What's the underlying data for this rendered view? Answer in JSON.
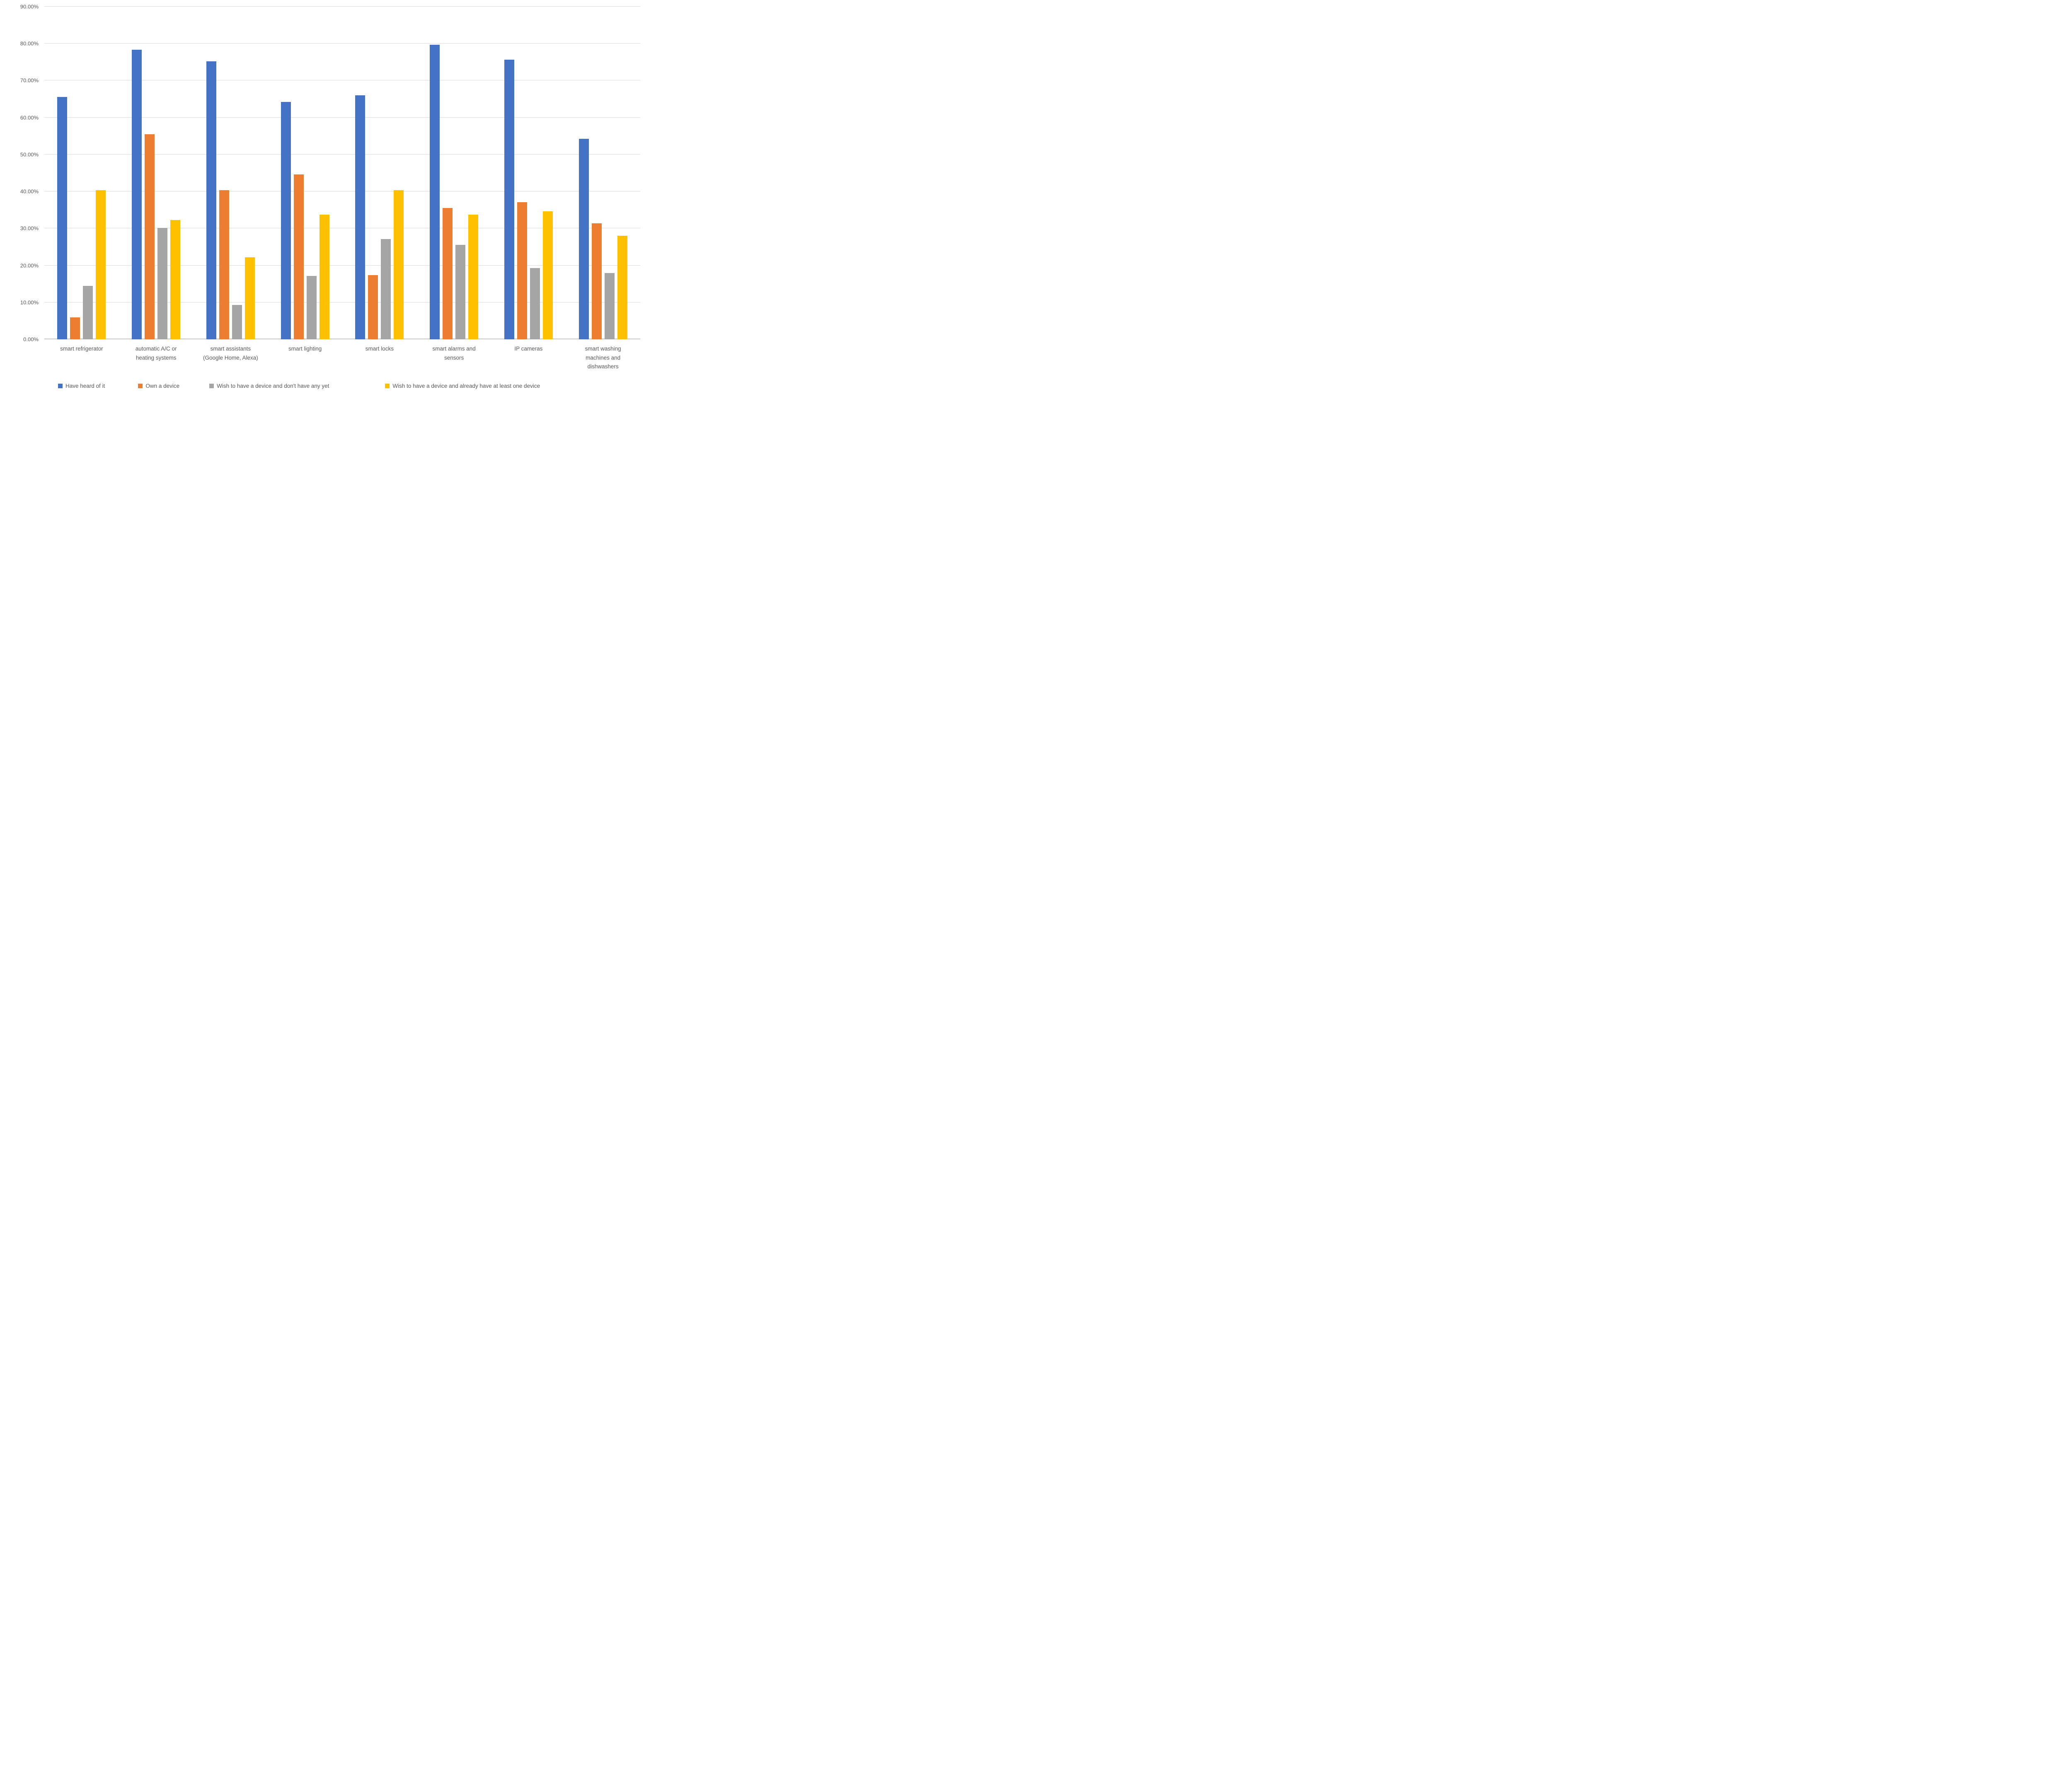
{
  "chart_data": {
    "type": "bar",
    "title": "",
    "xlabel": "",
    "ylabel": "",
    "categories": [
      "smart refrigerator",
      "automatic A/C or heating systems",
      "smart assistants (Google Home, Alexa)",
      "smart lighting",
      "smart locks",
      "smart alarms and sensors",
      "IP cameras",
      "smart washing machines and dishwashers"
    ],
    "series": [
      {
        "name": "Have heard of it",
        "color": "#4472C4",
        "values": [
          65.6,
          78.4,
          75.2,
          64.2,
          66.0,
          79.7,
          75.6,
          54.3
        ]
      },
      {
        "name": "Own a device",
        "color": "#ED7D31",
        "values": [
          5.9,
          55.5,
          40.4,
          44.6,
          17.4,
          35.5,
          37.1,
          31.4
        ]
      },
      {
        "name": "Wish to have a device and don't have any yet",
        "color": "#A5A5A5",
        "values": [
          14.5,
          30.2,
          9.3,
          17.2,
          27.1,
          25.6,
          19.3,
          17.9
        ]
      },
      {
        "name": "Wish to have a device and already have at least one device",
        "color": "#FFC000",
        "values": [
          40.4,
          32.3,
          22.2,
          33.7,
          40.4,
          33.7,
          34.6,
          28.0
        ]
      }
    ],
    "ylim": [
      0,
      90
    ],
    "ytick_step": 10,
    "yticks": [
      "0.00%",
      "10.00%",
      "20.00%",
      "30.00%",
      "40.00%",
      "50.00%",
      "60.00%",
      "70.00%",
      "80.00%",
      "90.00%"
    ],
    "grid": true,
    "legend_position": "bottom",
    "gridline_color": "#D9D9D9",
    "text_color": "#595959",
    "background": "#FFFFFF"
  }
}
